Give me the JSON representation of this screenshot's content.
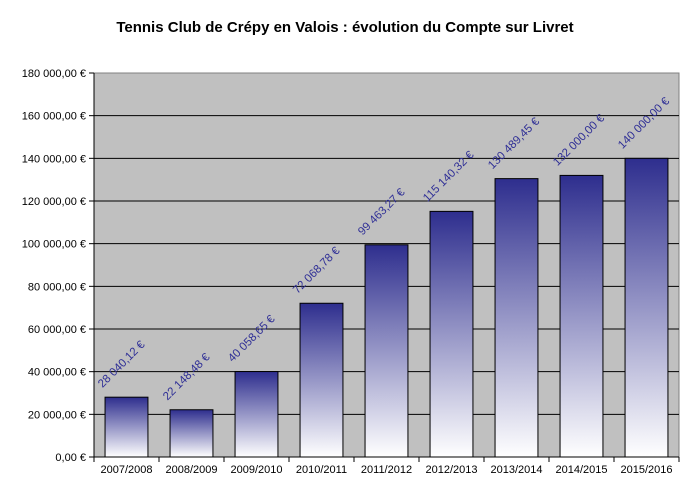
{
  "chart_data": {
    "type": "bar",
    "title": "Tennis Club de Crépy en Valois : évolution du Compte sur Livret",
    "xlabel": "",
    "ylabel": "",
    "categories": [
      "2007/2008",
      "2008/2009",
      "2009/2010",
      "2010/2011",
      "2011/2012",
      "2012/2013",
      "2013/2014",
      "2014/2015",
      "2015/2016"
    ],
    "values": [
      28040.12,
      22148.48,
      40058.65,
      72068.78,
      99463.27,
      115140.32,
      130489.45,
      132000.0,
      140000.0
    ],
    "data_labels": [
      "28 040,12 €",
      "22 148,48 €",
      "40 058,65 €",
      "72 068,78 €",
      "99 463,27 €",
      "115 140,32 €",
      "130 489,45 €",
      "132 000,00 €",
      "140 000,00 €"
    ],
    "ylim": [
      0,
      180000
    ],
    "yticks": [
      0,
      20000,
      40000,
      60000,
      80000,
      100000,
      120000,
      140000,
      160000,
      180000
    ],
    "ytick_labels": [
      "0,00 €",
      "20 000,00 €",
      "40 000,00 €",
      "60 000,00 €",
      "80 000,00 €",
      "100 000,00 €",
      "120 000,00 €",
      "140 000,00 €",
      "160 000,00 €",
      "180 000,00 €"
    ],
    "grid": true,
    "legend": "none",
    "colors": {
      "plot_background": "#c0c0c0",
      "bar_top": "#2e2e8e",
      "bar_bottom": "#ffffff",
      "data_label": "#2f2f96",
      "gridline": "#000000"
    }
  }
}
